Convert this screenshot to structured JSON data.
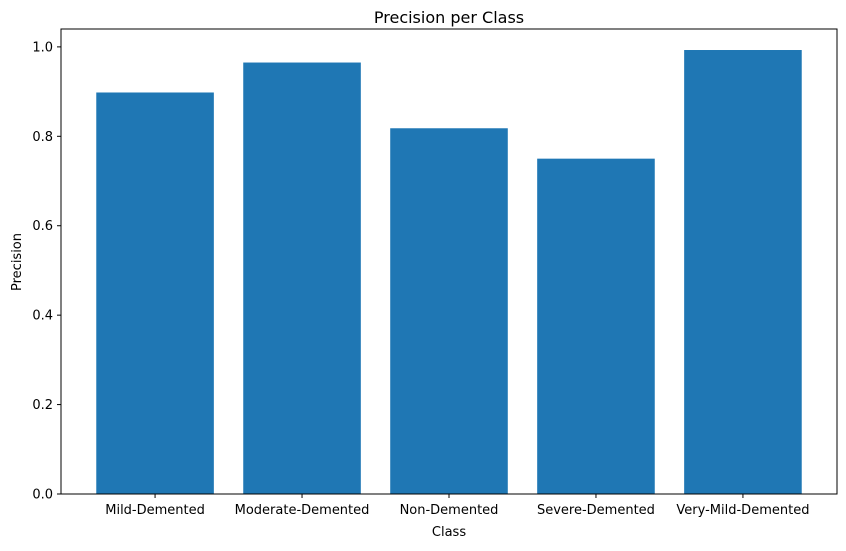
{
  "chart_data": {
    "type": "bar",
    "title": "Precision per Class",
    "xlabel": "Class",
    "ylabel": "Precision",
    "categories": [
      "Mild-Demented",
      "Moderate-Demented",
      "Non-Demented",
      "Severe-Demented",
      "Very-Mild-Demented"
    ],
    "values": [
      0.898,
      0.965,
      0.818,
      0.75,
      0.993
    ],
    "ylim": [
      0,
      1.04
    ],
    "yticks": [
      "0.0",
      "0.2",
      "0.4",
      "0.6",
      "0.8",
      "1.0"
    ],
    "grid": false,
    "legend": "none",
    "bar_color": "#1f77b4"
  }
}
